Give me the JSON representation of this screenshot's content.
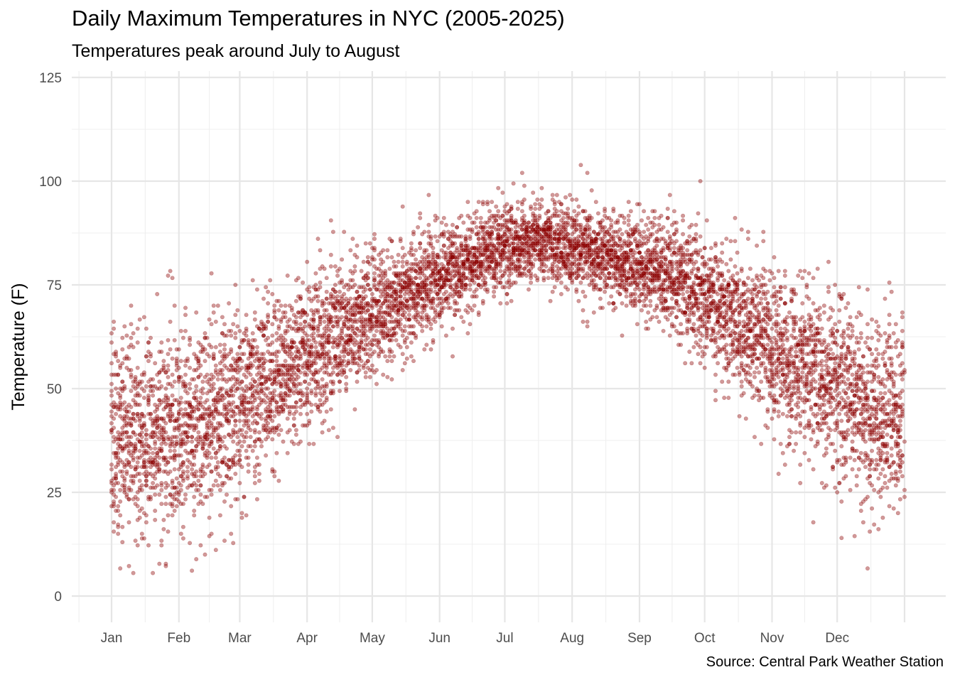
{
  "chart_data": {
    "type": "scatter",
    "title": "Daily Maximum Temperatures in NYC (2005-2025)",
    "subtitle": "Temperatures peak around July to August",
    "caption": "Source: Central Park Weather Station",
    "xlabel": "",
    "ylabel": "Temperature (F)",
    "ylim": [
      0,
      125
    ],
    "y_ticks": [
      0,
      25,
      50,
      75,
      100,
      125
    ],
    "xlim_day_of_year": [
      1,
      366
    ],
    "x_ticks": [
      {
        "label": "Jan",
        "day": 1
      },
      {
        "label": "Feb",
        "day": 32
      },
      {
        "label": "Mar",
        "day": 60
      },
      {
        "label": "Apr",
        "day": 91
      },
      {
        "label": "May",
        "day": 121
      },
      {
        "label": "Jun",
        "day": 152
      },
      {
        "label": "Jul",
        "day": 182
      },
      {
        "label": "Aug",
        "day": 213
      },
      {
        "label": "Sep",
        "day": 244
      },
      {
        "label": "Oct",
        "day": 274
      },
      {
        "label": "Nov",
        "day": 305
      },
      {
        "label": "Dec",
        "day": 335
      }
    ],
    "grid": true,
    "legend": "none",
    "point_color": "#8B0000",
    "point_opacity": 0.4,
    "years_shown": "2005-2025",
    "seasonal_curve": {
      "day_of_year": [
        1,
        15,
        32,
        45,
        60,
        75,
        91,
        105,
        121,
        135,
        152,
        166,
        182,
        196,
        213,
        227,
        244,
        258,
        274,
        288,
        305,
        319,
        335,
        350,
        366
      ],
      "typical_max_F": [
        39,
        39,
        40,
        42,
        46,
        52,
        58,
        63,
        68,
        72,
        77,
        80,
        84,
        86,
        84,
        83,
        80,
        77,
        72,
        67,
        60,
        55,
        50,
        45,
        43
      ]
    },
    "notable_points": [
      {
        "day": 6,
        "value": 13
      },
      {
        "day": 33,
        "value": 15
      },
      {
        "day": 47,
        "value": 15
      },
      {
        "day": 190,
        "value": 102
      },
      {
        "day": 220,
        "value": 102
      },
      {
        "day": 337,
        "value": 14
      }
    ]
  }
}
